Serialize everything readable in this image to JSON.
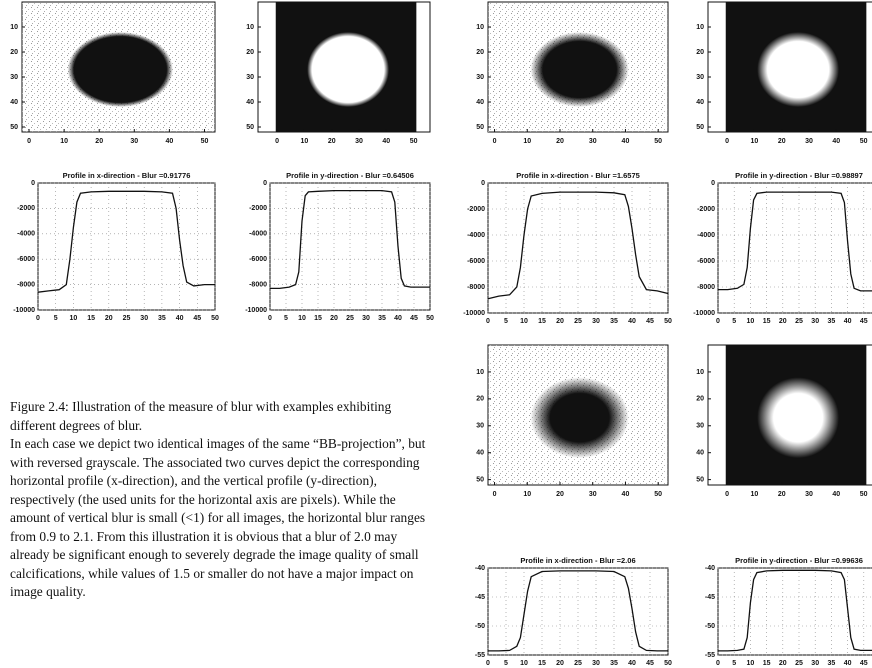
{
  "chart_data": [
    {
      "type": "image",
      "inverted": false,
      "xlim": [
        -2,
        53
      ],
      "ylim": [
        0,
        52
      ],
      "xticks": [
        0,
        10,
        20,
        30,
        40,
        50
      ],
      "yticks": [
        10,
        20,
        30,
        40,
        50
      ]
    },
    {
      "type": "image",
      "inverted": true,
      "xlim": [
        -7,
        56
      ],
      "ylim": [
        0,
        52
      ],
      "xticks": [
        0,
        10,
        20,
        30,
        40,
        50
      ],
      "yticks": [
        10,
        20,
        30,
        40,
        50
      ]
    },
    {
      "type": "line",
      "title": "Profile in x-direction - Blur =0.91776",
      "xlim": [
        0,
        50
      ],
      "ylim": [
        -10000,
        0
      ],
      "xticks": [
        0,
        5,
        10,
        15,
        20,
        25,
        30,
        35,
        40,
        45,
        50
      ],
      "yticks": [
        0,
        -2000,
        -4000,
        -6000,
        -8000,
        -10000
      ],
      "grid": true,
      "x": [
        0,
        3,
        6,
        8,
        9,
        10,
        11,
        12,
        15,
        20,
        25,
        30,
        35,
        38,
        39,
        40,
        41,
        42,
        44,
        47,
        50
      ],
      "series": [
        {
          "color": "#111111",
          "values": [
            -8600,
            -8500,
            -8400,
            -8000,
            -6000,
            -3500,
            -1500,
            -800,
            -700,
            -650,
            -650,
            -650,
            -700,
            -800,
            -2000,
            -4500,
            -6500,
            -7800,
            -8100,
            -8000,
            -8000
          ]
        }
      ]
    },
    {
      "type": "line",
      "title": "Profile in y-direction - Blur =0.64506",
      "xlim": [
        0,
        50
      ],
      "ylim": [
        -10000,
        0
      ],
      "xticks": [
        0,
        5,
        10,
        15,
        20,
        25,
        30,
        35,
        40,
        45,
        50
      ],
      "yticks": [
        0,
        -2000,
        -4000,
        -6000,
        -8000,
        -10000
      ],
      "grid": true,
      "x": [
        0,
        3,
        6,
        8,
        9,
        10,
        11,
        12,
        15,
        20,
        25,
        30,
        35,
        38,
        39,
        40,
        41,
        42,
        44,
        47,
        50
      ],
      "series": [
        {
          "color": "#111111",
          "values": [
            -8300,
            -8300,
            -8200,
            -8000,
            -7000,
            -3000,
            -1000,
            -700,
            -650,
            -600,
            -600,
            -600,
            -600,
            -700,
            -1500,
            -5000,
            -7500,
            -8100,
            -8200,
            -8200,
            -8200
          ]
        }
      ]
    },
    {
      "type": "image",
      "inverted": false,
      "xlim": [
        -2,
        53
      ],
      "ylim": [
        0,
        52
      ],
      "xticks": [
        0,
        10,
        20,
        30,
        40,
        50
      ],
      "yticks": [
        10,
        20,
        30,
        40,
        50
      ]
    },
    {
      "type": "image",
      "inverted": true,
      "xlim": [
        -7,
        56
      ],
      "ylim": [
        0,
        52
      ],
      "xticks": [
        0,
        10,
        20,
        30,
        40,
        50
      ],
      "yticks": [
        10,
        20,
        30,
        40,
        50
      ]
    },
    {
      "type": "line",
      "title": "Profile in x-direction - Blur =1.6575",
      "xlim": [
        0,
        50
      ],
      "ylim": [
        -10000,
        0
      ],
      "xticks": [
        0,
        5,
        10,
        15,
        20,
        25,
        30,
        35,
        40,
        45,
        50
      ],
      "yticks": [
        0,
        -2000,
        -4000,
        -6000,
        -8000,
        -10000
      ],
      "grid": true,
      "x": [
        0,
        3,
        6,
        8,
        9,
        10,
        11,
        12,
        15,
        20,
        25,
        30,
        35,
        38,
        39,
        40,
        41,
        42,
        44,
        47,
        50
      ],
      "series": [
        {
          "color": "#111111",
          "values": [
            -8900,
            -8700,
            -8600,
            -8000,
            -6500,
            -4000,
            -2000,
            -1000,
            -800,
            -700,
            -700,
            -700,
            -750,
            -900,
            -1800,
            -3500,
            -5500,
            -7200,
            -8200,
            -8300,
            -8500
          ]
        }
      ]
    },
    {
      "type": "line",
      "title": "Profile in y-direction - Blur =0.98897",
      "xlim": [
        0,
        50
      ],
      "ylim": [
        -10000,
        0
      ],
      "xticks": [
        0,
        5,
        10,
        15,
        20,
        25,
        30,
        35,
        40,
        45,
        50
      ],
      "yticks": [
        0,
        -2000,
        -4000,
        -6000,
        -8000,
        -10000
      ],
      "grid": true,
      "x": [
        0,
        3,
        6,
        8,
        9,
        10,
        11,
        12,
        15,
        20,
        25,
        30,
        35,
        38,
        39,
        40,
        41,
        42,
        44,
        47,
        50
      ],
      "series": [
        {
          "color": "#111111",
          "values": [
            -8200,
            -8200,
            -8100,
            -7800,
            -6500,
            -3500,
            -1300,
            -800,
            -700,
            -700,
            -700,
            -700,
            -700,
            -800,
            -1500,
            -4500,
            -7000,
            -8100,
            -8300,
            -8300,
            -8300
          ]
        }
      ]
    },
    {
      "type": "image",
      "inverted": false,
      "xlim": [
        -2,
        53
      ],
      "ylim": [
        0,
        52
      ],
      "xticks": [
        0,
        10,
        20,
        30,
        40,
        50
      ],
      "yticks": [
        10,
        20,
        30,
        40,
        50
      ]
    },
    {
      "type": "image",
      "inverted": true,
      "xlim": [
        -7,
        56
      ],
      "ylim": [
        0,
        52
      ],
      "xticks": [
        0,
        10,
        20,
        30,
        40,
        50
      ],
      "yticks": [
        10,
        20,
        30,
        40,
        50
      ]
    },
    {
      "type": "line",
      "title": "Profile in x-direction - Blur =2.06",
      "xlim": [
        0,
        50
      ],
      "ylim": [
        -55,
        -40
      ],
      "xticks": [
        0,
        5,
        10,
        15,
        20,
        25,
        30,
        35,
        40,
        45,
        50
      ],
      "yticks": [
        -40,
        -45,
        -50,
        -55
      ],
      "grid": true,
      "x": [
        0,
        3,
        6,
        8,
        9,
        10,
        11,
        12,
        15,
        20,
        25,
        30,
        35,
        38,
        39,
        40,
        41,
        42,
        44,
        47,
        50
      ],
      "series": [
        {
          "color": "#111111",
          "values": [
            -54.3,
            -54.3,
            -54.2,
            -53.5,
            -52,
            -48,
            -44,
            -41.5,
            -40.6,
            -40.5,
            -40.5,
            -40.5,
            -40.6,
            -41.5,
            -43.5,
            -47,
            -51,
            -53.5,
            -54.2,
            -54.3,
            -54.3
          ]
        }
      ]
    },
    {
      "type": "line",
      "title": "Profile in y-direction - Blur =0.99636",
      "xlim": [
        0,
        50
      ],
      "ylim": [
        -55,
        -40
      ],
      "xticks": [
        0,
        5,
        10,
        15,
        20,
        25,
        30,
        35,
        40,
        45,
        50
      ],
      "yticks": [
        -40,
        -45,
        -50,
        -55
      ],
      "grid": true,
      "x": [
        0,
        3,
        6,
        8,
        9,
        10,
        11,
        12,
        15,
        20,
        25,
        30,
        35,
        38,
        39,
        40,
        41,
        42,
        44,
        47,
        50
      ],
      "series": [
        {
          "color": "#111111",
          "values": [
            -54.3,
            -54.3,
            -54.2,
            -54,
            -52,
            -46,
            -42,
            -40.8,
            -40.5,
            -40.4,
            -40.4,
            -40.4,
            -40.5,
            -40.8,
            -42,
            -47,
            -52,
            -54,
            -54.2,
            -54.2,
            -54.2
          ]
        }
      ]
    }
  ],
  "caption": {
    "title": "Figure 2.4: Illustration of the measure of blur with examples exhibiting different degrees of blur.",
    "body": "In each case we depict two identical images of the same “BB-projection”, but with reversed grayscale. The associated two curves depict the corresponding  horizontal profile (x-direction), and the vertical profile (y-direction), respectively (the used units for the horizontal axis are pixels). While the amount of vertical blur is small (<1) for all images, the horizontal blur ranges from 0.9 to 2.1. From this illustration it is obvious that a blur of 2.0 may already be significant enough to severely degrade the image quality of small calcifications, while values of 1.5 or smaller do not have a major impact on image quality."
  }
}
